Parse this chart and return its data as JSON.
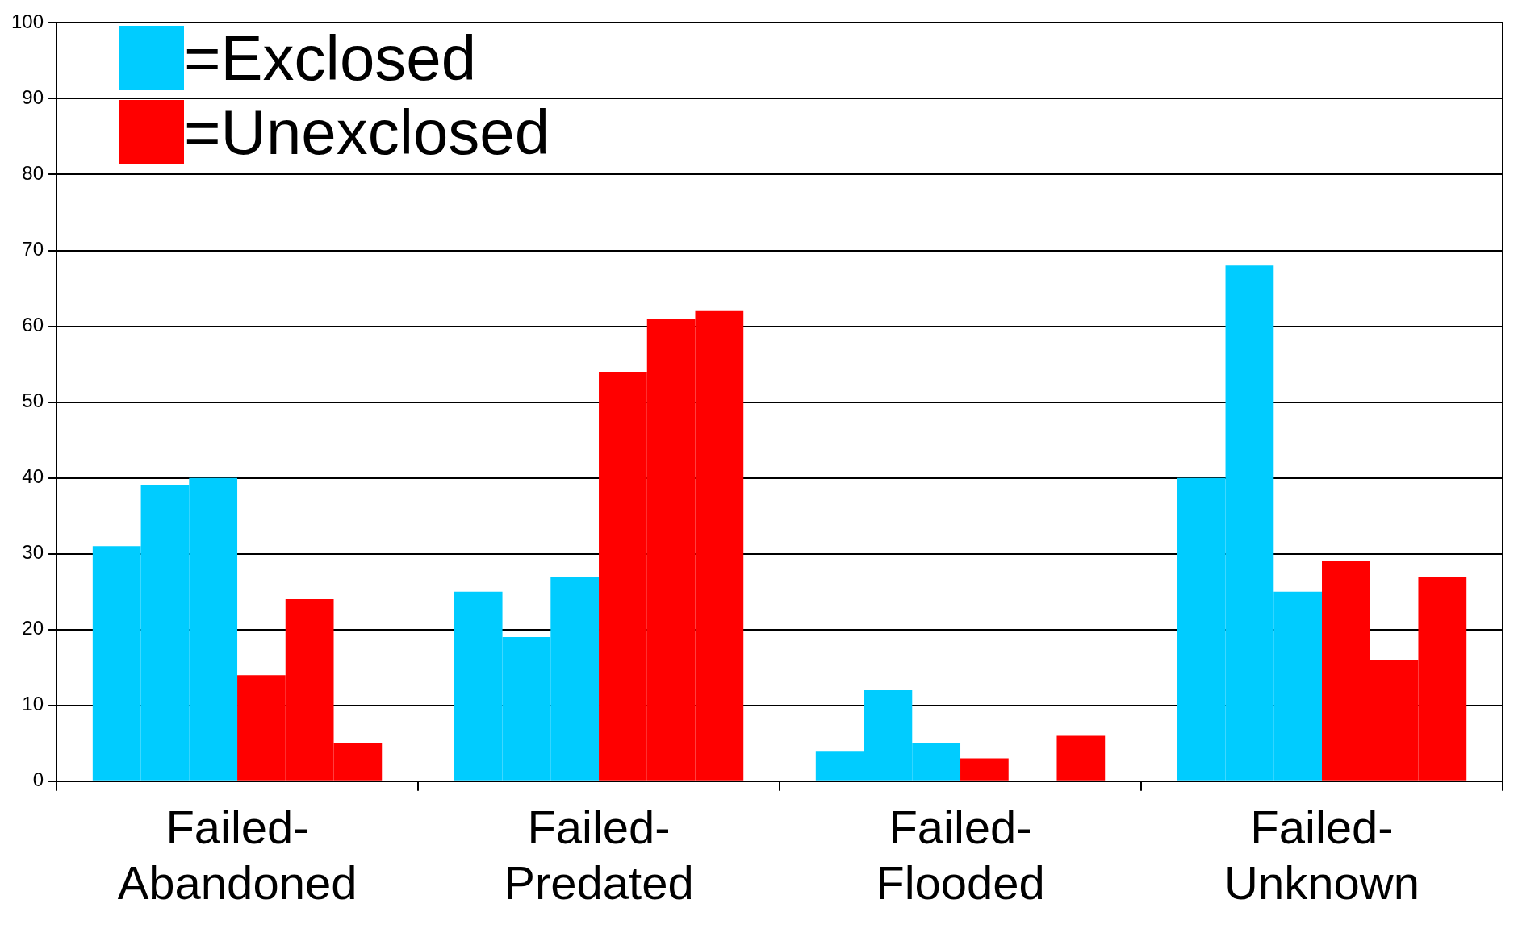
{
  "chart_data": {
    "type": "bar",
    "categories": [
      "Failed-Abandoned",
      "Failed-Predated",
      "Failed-Flooded",
      "Failed-Unknown"
    ],
    "series": [
      {
        "name": "=Exclosed",
        "color": "#00ccff",
        "values": [
          31,
          25,
          4,
          40
        ]
      },
      {
        "color": "#00ccff",
        "values": [
          39,
          19,
          12,
          68
        ]
      },
      {
        "color": "#00ccff",
        "values": [
          40,
          27,
          5,
          25
        ]
      },
      {
        "name": "=Unexclosed",
        "color": "#ff0000",
        "values": [
          14,
          54,
          3,
          29
        ]
      },
      {
        "color": "#ff0000",
        "values": [
          24,
          61,
          0,
          16
        ]
      },
      {
        "color": "#ff0000",
        "values": [
          5,
          62,
          6,
          27
        ]
      }
    ],
    "ylim": [
      0,
      100
    ],
    "yticks": [
      0,
      10,
      20,
      30,
      40,
      50,
      60,
      70,
      80,
      90,
      100
    ],
    "grid": "y",
    "legend": "top left"
  }
}
